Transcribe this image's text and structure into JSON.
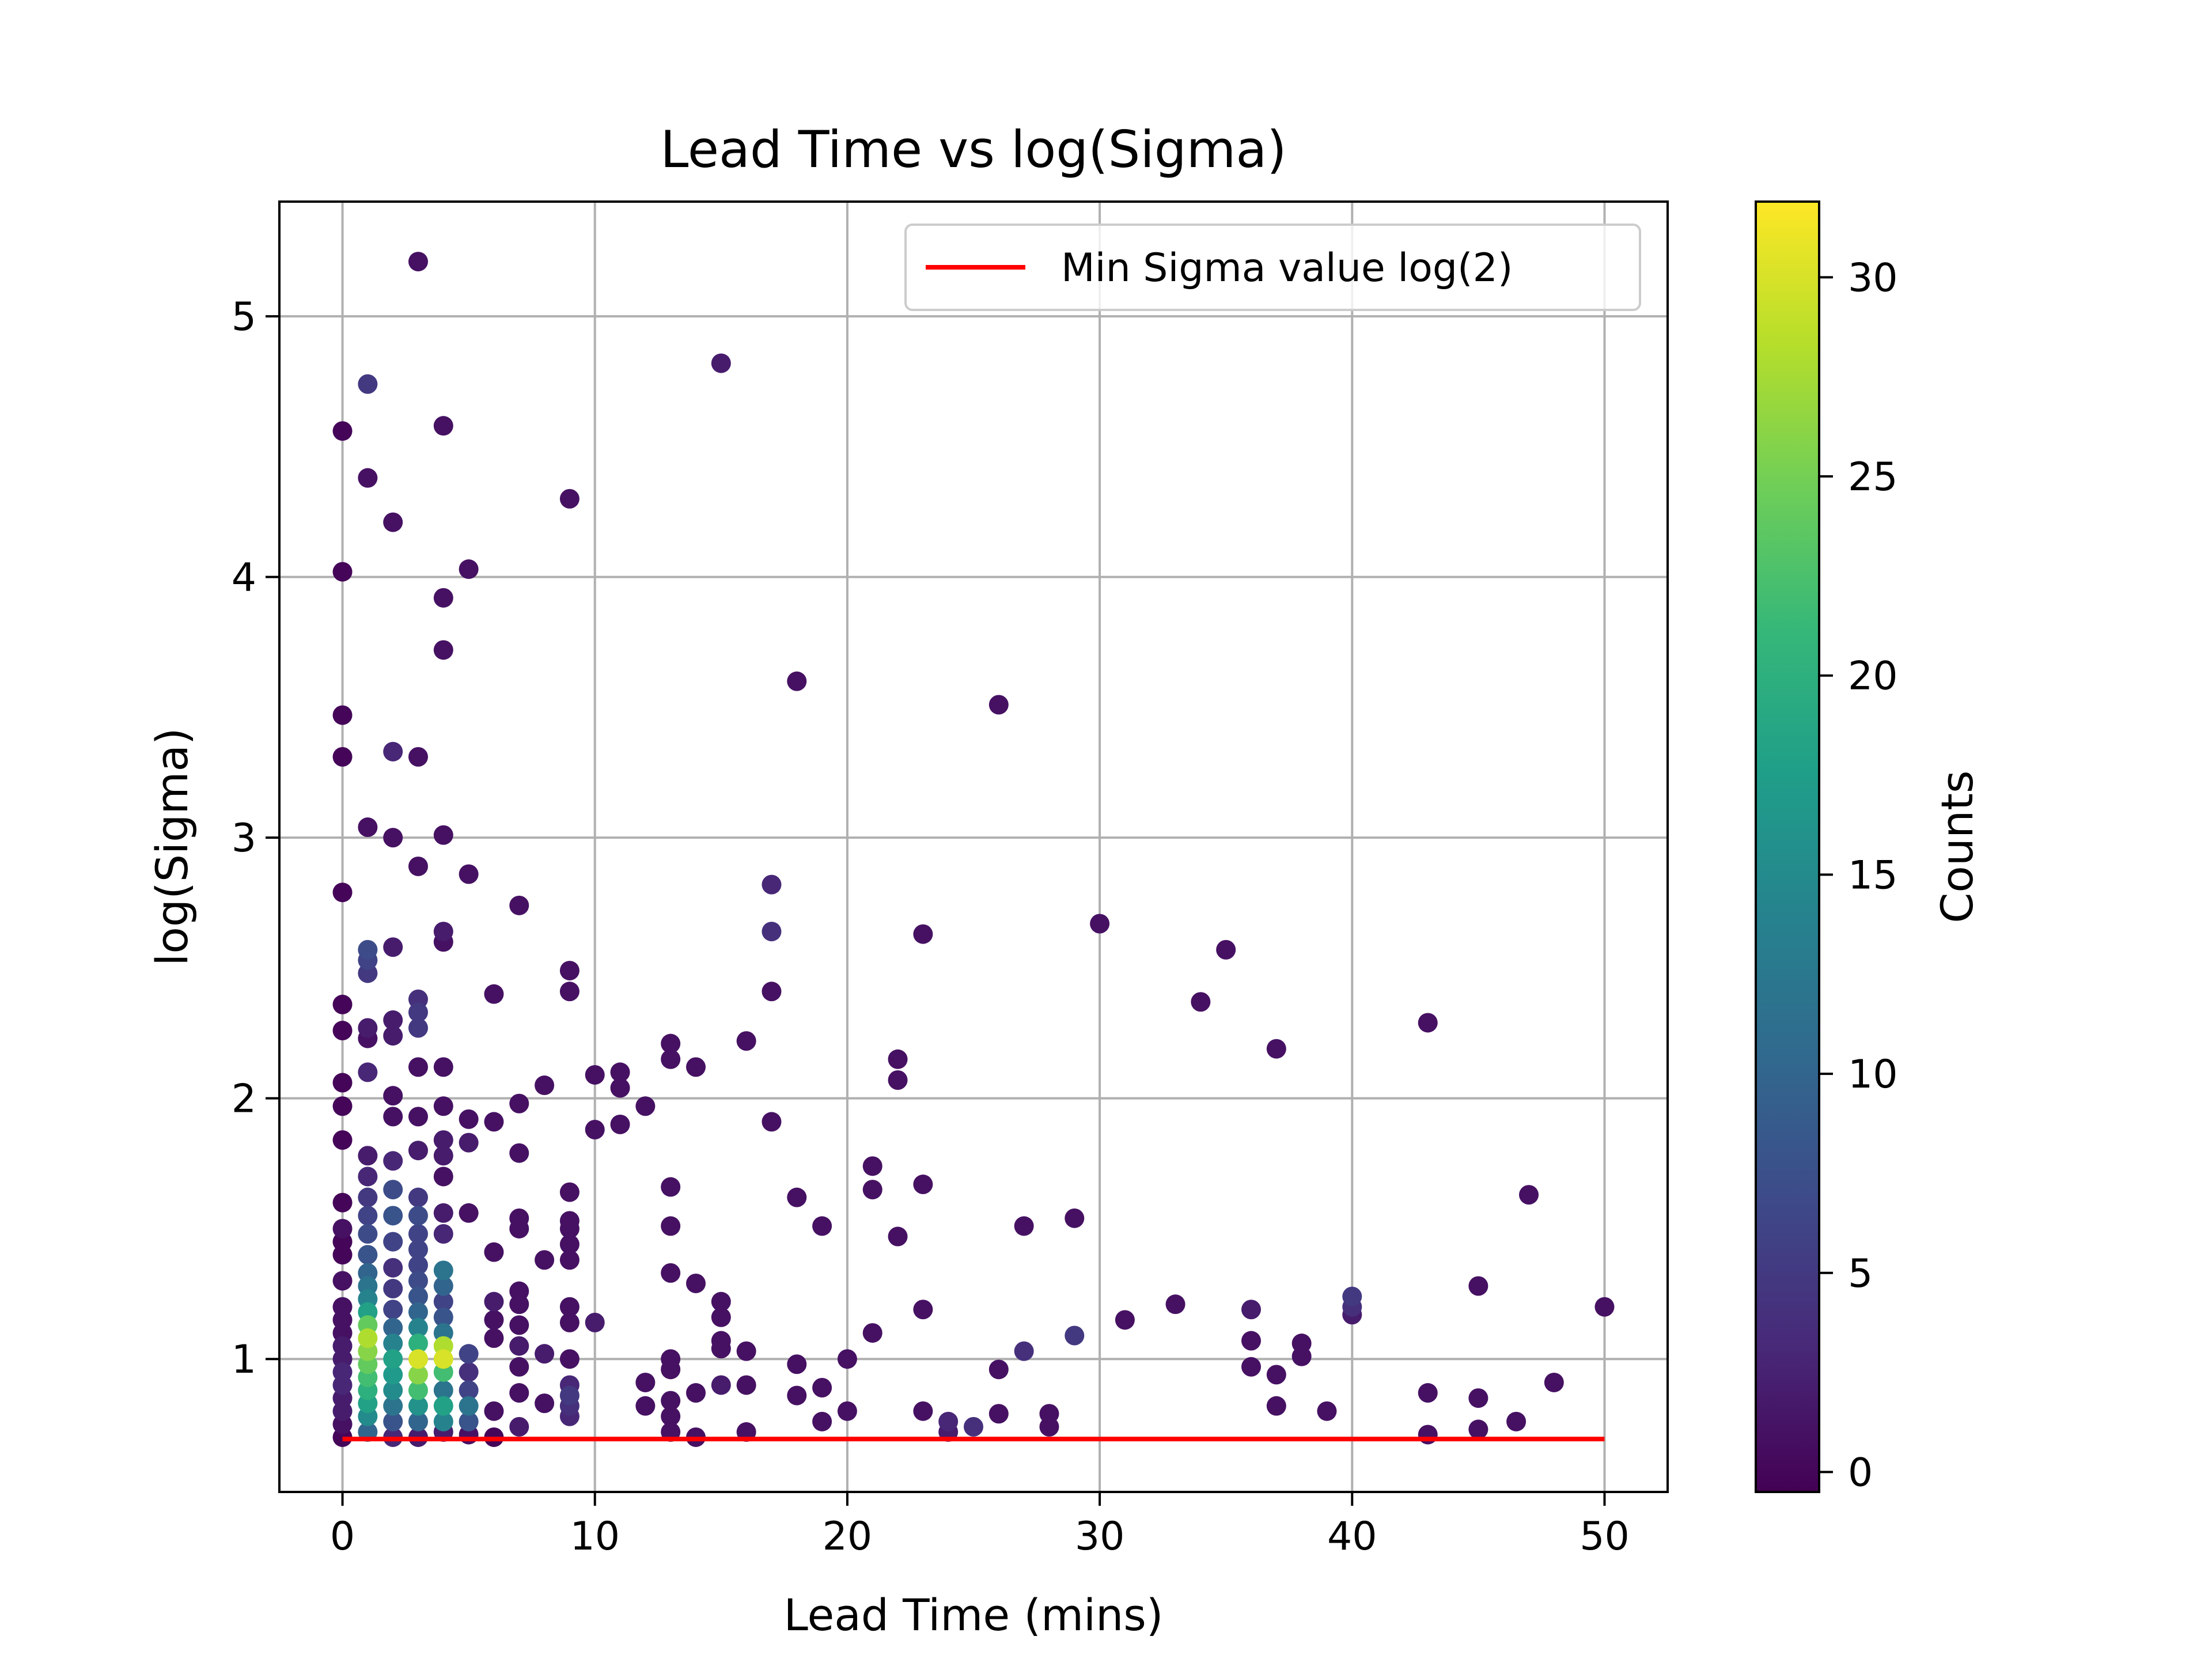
{
  "chart_data": {
    "type": "scatter",
    "title": "Lead Time vs log(Sigma)",
    "xlabel": "Lead Time (mins)",
    "ylabel": "log(Sigma)",
    "xlim": [
      -2.5,
      52.5
    ],
    "ylim": [
      0.49,
      5.44
    ],
    "xticks": [
      0,
      10,
      20,
      30,
      40,
      50
    ],
    "yticks": [
      1,
      2,
      3,
      4,
      5
    ],
    "grid": true,
    "legend": {
      "placement": "top-right",
      "entries": [
        {
          "label": "Min Sigma value log(2)",
          "color": "#ff0000"
        }
      ]
    },
    "reference_line": {
      "name": "Min Sigma value log(2)",
      "x": [
        0,
        50
      ],
      "y": [
        0.693,
        0.693
      ],
      "color": "#ff0000"
    },
    "colorbar": {
      "label": "Counts",
      "range": [
        -0.5,
        31.9
      ],
      "ticks": [
        0,
        5,
        10,
        15,
        20,
        25,
        30
      ],
      "colormap": [
        "#440154",
        "#482878",
        "#3e4989",
        "#31688e",
        "#26828e",
        "#1f9e89",
        "#35b779",
        "#6ece58",
        "#b5de2b",
        "#fde725"
      ]
    },
    "points": [
      [
        0,
        0.7,
        0
      ],
      [
        0,
        0.75,
        1
      ],
      [
        0,
        0.8,
        2
      ],
      [
        0,
        0.85,
        2
      ],
      [
        0,
        0.9,
        3
      ],
      [
        0,
        0.95,
        3
      ],
      [
        0,
        1.0,
        2
      ],
      [
        0,
        1.05,
        2
      ],
      [
        0,
        1.1,
        1
      ],
      [
        0,
        1.15,
        1
      ],
      [
        0,
        1.2,
        1
      ],
      [
        0,
        1.3,
        1
      ],
      [
        0,
        1.4,
        0
      ],
      [
        0,
        1.45,
        0
      ],
      [
        0,
        1.5,
        1
      ],
      [
        0,
        1.6,
        0
      ],
      [
        0,
        1.84,
        0
      ],
      [
        0,
        1.97,
        0
      ],
      [
        0,
        2.06,
        0
      ],
      [
        0,
        2.26,
        0
      ],
      [
        0,
        2.36,
        0
      ],
      [
        0,
        2.79,
        0
      ],
      [
        0,
        3.31,
        0
      ],
      [
        0,
        3.47,
        0
      ],
      [
        0,
        4.02,
        0
      ],
      [
        0,
        4.56,
        0
      ],
      [
        1,
        0.72,
        10
      ],
      [
        1,
        0.78,
        15
      ],
      [
        1,
        0.83,
        18
      ],
      [
        1,
        0.88,
        20
      ],
      [
        1,
        0.93,
        22
      ],
      [
        1,
        0.98,
        24
      ],
      [
        1,
        1.03,
        26
      ],
      [
        1,
        1.08,
        28
      ],
      [
        1,
        1.13,
        24
      ],
      [
        1,
        1.18,
        18
      ],
      [
        1,
        1.23,
        14
      ],
      [
        1,
        1.28,
        12
      ],
      [
        1,
        1.33,
        10
      ],
      [
        1,
        1.4,
        8
      ],
      [
        1,
        1.48,
        7
      ],
      [
        1,
        1.55,
        6
      ],
      [
        1,
        1.62,
        5
      ],
      [
        1,
        1.7,
        3
      ],
      [
        1,
        1.78,
        2
      ],
      [
        1,
        2.1,
        3
      ],
      [
        1,
        2.23,
        1
      ],
      [
        1,
        2.27,
        2
      ],
      [
        1,
        2.48,
        5
      ],
      [
        1,
        2.53,
        6
      ],
      [
        1,
        2.57,
        7
      ],
      [
        1,
        3.04,
        1
      ],
      [
        1,
        4.38,
        1
      ],
      [
        1,
        4.74,
        5
      ],
      [
        2,
        0.7,
        3
      ],
      [
        2,
        0.76,
        8
      ],
      [
        2,
        0.82,
        12
      ],
      [
        2,
        0.88,
        15
      ],
      [
        2,
        0.94,
        17
      ],
      [
        2,
        1.0,
        18
      ],
      [
        2,
        1.06,
        14
      ],
      [
        2,
        1.12,
        10
      ],
      [
        2,
        1.19,
        6
      ],
      [
        2,
        1.27,
        5
      ],
      [
        2,
        1.35,
        4
      ],
      [
        2,
        1.45,
        6
      ],
      [
        2,
        1.55,
        8
      ],
      [
        2,
        1.65,
        7
      ],
      [
        2,
        1.76,
        3
      ],
      [
        2,
        1.93,
        1
      ],
      [
        2,
        2.01,
        1
      ],
      [
        2,
        2.24,
        2
      ],
      [
        2,
        2.3,
        2
      ],
      [
        2,
        2.58,
        2
      ],
      [
        2,
        3.0,
        1
      ],
      [
        2,
        3.33,
        3
      ],
      [
        2,
        4.21,
        1
      ],
      [
        3,
        0.7,
        2
      ],
      [
        3,
        0.76,
        10
      ],
      [
        3,
        0.82,
        16
      ],
      [
        3,
        0.88,
        22
      ],
      [
        3,
        0.94,
        26
      ],
      [
        3,
        1.0,
        30
      ],
      [
        3,
        1.06,
        20
      ],
      [
        3,
        1.12,
        14
      ],
      [
        3,
        1.18,
        10
      ],
      [
        3,
        1.24,
        8
      ],
      [
        3,
        1.3,
        7
      ],
      [
        3,
        1.36,
        6
      ],
      [
        3,
        1.42,
        6
      ],
      [
        3,
        1.48,
        6
      ],
      [
        3,
        1.55,
        7
      ],
      [
        3,
        1.62,
        5
      ],
      [
        3,
        1.8,
        2
      ],
      [
        3,
        1.93,
        1
      ],
      [
        3,
        2.12,
        1
      ],
      [
        3,
        2.27,
        5
      ],
      [
        3,
        2.33,
        5
      ],
      [
        3,
        2.38,
        4
      ],
      [
        3,
        2.89,
        1
      ],
      [
        3,
        3.31,
        1
      ],
      [
        3,
        5.21,
        1
      ],
      [
        4,
        0.72,
        2
      ],
      [
        4,
        0.76,
        14
      ],
      [
        4,
        0.82,
        18
      ],
      [
        4,
        0.88,
        12
      ],
      [
        4,
        0.95,
        22
      ],
      [
        4,
        1.0,
        30
      ],
      [
        4,
        1.05,
        28
      ],
      [
        4,
        1.1,
        12
      ],
      [
        4,
        1.16,
        8
      ],
      [
        4,
        1.22,
        6
      ],
      [
        4,
        1.28,
        10
      ],
      [
        4,
        1.34,
        12
      ],
      [
        4,
        1.48,
        3
      ],
      [
        4,
        1.56,
        2
      ],
      [
        4,
        1.7,
        1
      ],
      [
        4,
        1.78,
        2
      ],
      [
        4,
        1.84,
        2
      ],
      [
        4,
        1.97,
        1
      ],
      [
        4,
        2.12,
        1
      ],
      [
        4,
        2.6,
        1
      ],
      [
        4,
        2.64,
        2
      ],
      [
        4,
        3.01,
        1
      ],
      [
        4,
        3.72,
        1
      ],
      [
        4,
        3.92,
        1
      ],
      [
        4,
        4.58,
        1
      ],
      [
        5,
        0.71,
        1
      ],
      [
        5,
        0.76,
        8
      ],
      [
        5,
        0.82,
        12
      ],
      [
        5,
        0.88,
        6
      ],
      [
        5,
        0.95,
        4
      ],
      [
        5,
        1.02,
        6
      ],
      [
        5,
        1.56,
        1
      ],
      [
        5,
        1.83,
        2
      ],
      [
        5,
        1.92,
        1
      ],
      [
        5,
        2.86,
        1
      ],
      [
        5,
        4.03,
        1
      ],
      [
        6,
        0.7,
        0
      ],
      [
        6,
        0.8,
        1
      ],
      [
        6,
        1.08,
        1
      ],
      [
        6,
        1.15,
        1
      ],
      [
        6,
        1.22,
        2
      ],
      [
        6,
        1.41,
        1
      ],
      [
        6,
        1.91,
        1
      ],
      [
        6,
        2.4,
        1
      ],
      [
        7,
        0.74,
        2
      ],
      [
        7,
        0.87,
        1
      ],
      [
        7,
        0.97,
        1
      ],
      [
        7,
        1.05,
        2
      ],
      [
        7,
        1.13,
        1
      ],
      [
        7,
        1.21,
        1
      ],
      [
        7,
        1.26,
        1
      ],
      [
        7,
        1.5,
        1
      ],
      [
        7,
        1.54,
        1
      ],
      [
        7,
        1.79,
        1
      ],
      [
        7,
        1.98,
        1
      ],
      [
        7,
        2.74,
        1
      ],
      [
        8,
        0.83,
        1
      ],
      [
        8,
        1.02,
        2
      ],
      [
        8,
        1.38,
        1
      ],
      [
        8,
        2.05,
        1
      ],
      [
        9,
        0.78,
        3
      ],
      [
        9,
        0.82,
        4
      ],
      [
        9,
        0.86,
        5
      ],
      [
        9,
        0.9,
        3
      ],
      [
        9,
        1.0,
        1
      ],
      [
        9,
        1.14,
        1
      ],
      [
        9,
        1.2,
        1
      ],
      [
        9,
        1.38,
        1
      ],
      [
        9,
        1.44,
        1
      ],
      [
        9,
        1.5,
        1
      ],
      [
        9,
        1.53,
        1
      ],
      [
        9,
        1.64,
        1
      ],
      [
        9,
        2.41,
        1
      ],
      [
        9,
        2.49,
        1
      ],
      [
        9,
        4.3,
        1
      ],
      [
        10,
        1.14,
        2
      ],
      [
        10,
        1.88,
        1
      ],
      [
        10,
        2.09,
        1
      ],
      [
        11,
        1.9,
        1
      ],
      [
        11,
        2.04,
        1
      ],
      [
        11,
        2.1,
        1
      ],
      [
        12,
        0.82,
        1
      ],
      [
        12,
        0.91,
        1
      ],
      [
        12,
        1.97,
        1
      ],
      [
        13,
        0.72,
        1
      ],
      [
        13,
        0.78,
        1
      ],
      [
        13,
        0.84,
        1
      ],
      [
        13,
        0.96,
        1
      ],
      [
        13,
        1.0,
        1
      ],
      [
        13,
        1.33,
        1
      ],
      [
        13,
        1.51,
        1
      ],
      [
        13,
        1.66,
        1
      ],
      [
        13,
        2.15,
        1
      ],
      [
        13,
        2.21,
        1
      ],
      [
        14,
        0.7,
        1
      ],
      [
        14,
        0.87,
        1
      ],
      [
        14,
        1.29,
        1
      ],
      [
        14,
        2.12,
        1
      ],
      [
        15,
        0.9,
        2
      ],
      [
        15,
        1.04,
        1
      ],
      [
        15,
        1.07,
        1
      ],
      [
        15,
        1.16,
        1
      ],
      [
        15,
        1.22,
        1
      ],
      [
        15,
        4.82,
        2
      ],
      [
        16,
        0.72,
        1
      ],
      [
        16,
        0.9,
        1
      ],
      [
        16,
        1.03,
        1
      ],
      [
        16,
        2.22,
        1
      ],
      [
        17,
        1.91,
        1
      ],
      [
        17,
        2.41,
        1
      ],
      [
        17,
        2.64,
        4
      ],
      [
        17,
        2.82,
        3
      ],
      [
        18,
        0.86,
        1
      ],
      [
        18,
        0.98,
        1
      ],
      [
        18,
        1.62,
        1
      ],
      [
        18,
        3.6,
        1
      ],
      [
        19,
        0.76,
        1
      ],
      [
        19,
        0.89,
        1
      ],
      [
        19,
        1.51,
        1
      ],
      [
        20,
        0.8,
        1
      ],
      [
        20,
        1.0,
        1
      ],
      [
        21,
        1.1,
        1
      ],
      [
        21,
        1.65,
        1
      ],
      [
        21,
        1.74,
        1
      ],
      [
        22,
        1.47,
        1
      ],
      [
        22,
        2.07,
        1
      ],
      [
        22,
        2.15,
        1
      ],
      [
        23,
        0.8,
        1
      ],
      [
        23,
        1.19,
        1
      ],
      [
        23,
        1.67,
        1
      ],
      [
        23,
        2.63,
        1
      ],
      [
        24,
        0.72,
        2
      ],
      [
        24,
        0.76,
        3
      ],
      [
        25,
        0.74,
        4
      ],
      [
        26,
        0.79,
        1
      ],
      [
        26,
        0.96,
        1
      ],
      [
        26,
        3.51,
        1
      ],
      [
        27,
        1.03,
        4
      ],
      [
        27,
        1.51,
        1
      ],
      [
        28,
        0.74,
        1
      ],
      [
        28,
        0.79,
        1
      ],
      [
        29,
        1.09,
        5
      ],
      [
        29,
        1.54,
        1
      ],
      [
        30,
        2.67,
        1
      ],
      [
        31,
        1.15,
        1
      ],
      [
        33,
        1.21,
        1
      ],
      [
        34,
        2.37,
        1
      ],
      [
        35,
        2.57,
        1
      ],
      [
        36,
        0.97,
        1
      ],
      [
        36,
        1.07,
        1
      ],
      [
        36,
        1.19,
        2
      ],
      [
        37,
        0.82,
        1
      ],
      [
        37,
        0.94,
        1
      ],
      [
        37,
        2.19,
        1
      ],
      [
        38,
        1.01,
        1
      ],
      [
        38,
        1.06,
        1
      ],
      [
        39,
        0.8,
        1
      ],
      [
        40,
        1.17,
        2
      ],
      [
        40,
        1.2,
        4
      ],
      [
        40,
        1.24,
        5
      ],
      [
        43,
        0.71,
        1
      ],
      [
        43,
        0.87,
        1
      ],
      [
        43,
        2.29,
        1
      ],
      [
        45,
        0.73,
        1
      ],
      [
        45,
        0.85,
        1
      ],
      [
        45,
        1.28,
        1
      ],
      [
        46.5,
        0.76,
        1
      ],
      [
        47,
        1.63,
        1
      ],
      [
        48,
        0.91,
        1
      ],
      [
        50,
        1.2,
        1
      ]
    ]
  }
}
